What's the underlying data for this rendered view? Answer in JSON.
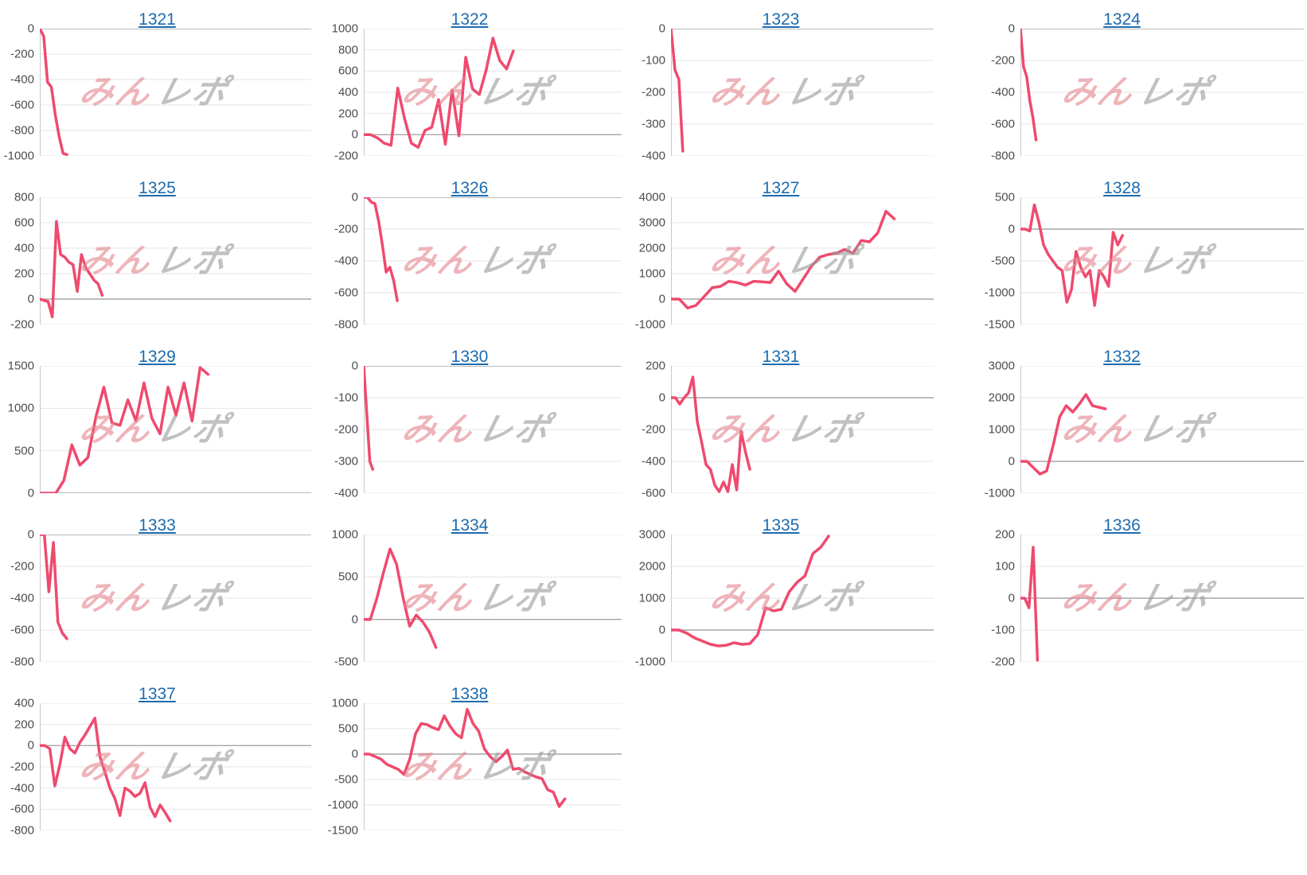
{
  "watermark": {
    "part1": "みん",
    "part2": "レポ"
  },
  "colors": {
    "line": "#ef4a6e",
    "link": "#1c6bb0",
    "grid": "#e4e4e4",
    "zero_line": "#a6a6a6",
    "axis": "#c9c9c9",
    "tick_label": "#4d4d4d",
    "watermark_pink": "#e4878f",
    "watermark_gray": "#9c9c9c",
    "background": "#ffffff"
  },
  "chart_data": [
    {
      "type": "line",
      "title": "1321",
      "yticks": [
        0,
        -200,
        -400,
        -600,
        -800,
        -1000
      ],
      "x_fraction": 0.1,
      "values": [
        0,
        -60,
        -420,
        -460,
        -680,
        -850,
        -980,
        -990
      ]
    },
    {
      "type": "line",
      "title": "1322",
      "yticks": [
        1000,
        800,
        600,
        400,
        200,
        0,
        -200
      ],
      "x_fraction": 0.58,
      "values": [
        0,
        0,
        -30,
        -80,
        -100,
        440,
        150,
        -80,
        -120,
        40,
        70,
        330,
        -90,
        420,
        -10,
        730,
        430,
        380,
        610,
        910,
        700,
        620,
        790
      ]
    },
    {
      "type": "line",
      "title": "1323",
      "yticks": [
        0,
        -100,
        -200,
        -300,
        -400
      ],
      "x_fraction": 0.045,
      "values": [
        0,
        -130,
        -160,
        -385
      ]
    },
    {
      "type": "line",
      "title": "1324",
      "yticks": [
        0,
        -200,
        -400,
        -600,
        -800
      ],
      "x_fraction": 0.055,
      "values": [
        0,
        -240,
        -300,
        -450,
        -560,
        -700
      ]
    },
    {
      "type": "line",
      "title": "1325",
      "yticks": [
        800,
        600,
        400,
        200,
        0,
        -200
      ],
      "x_fraction": 0.23,
      "values": [
        0,
        -10,
        -20,
        -140,
        610,
        350,
        330,
        290,
        270,
        60,
        350,
        250,
        200,
        150,
        120,
        30
      ]
    },
    {
      "type": "line",
      "title": "1326",
      "yticks": [
        0,
        -200,
        -400,
        -600,
        -800
      ],
      "x_fraction": 0.13,
      "values": [
        0,
        0,
        -30,
        -40,
        -150,
        -300,
        -470,
        -440,
        -520,
        -650
      ]
    },
    {
      "type": "line",
      "title": "1327",
      "yticks": [
        4000,
        3000,
        2000,
        1000,
        0,
        -1000
      ],
      "x_fraction": 0.85,
      "values": [
        0,
        0,
        -350,
        -250,
        100,
        450,
        500,
        700,
        650,
        550,
        700,
        680,
        650,
        1100,
        600,
        300,
        800,
        1300,
        1650,
        1750,
        1800,
        1950,
        1800,
        2300,
        2250,
        2600,
        3450,
        3150
      ]
    },
    {
      "type": "line",
      "title": "1328",
      "yticks": [
        500,
        0,
        -500,
        -1000,
        -1500
      ],
      "x_fraction": 0.36,
      "values": [
        0,
        0,
        -30,
        380,
        100,
        -250,
        -400,
        -500,
        -600,
        -650,
        -1150,
        -950,
        -350,
        -600,
        -750,
        -650,
        -1200,
        -650,
        -750,
        -900,
        -50,
        -250,
        -100
      ]
    },
    {
      "type": "line",
      "title": "1329",
      "yticks": [
        1500,
        1000,
        500,
        0
      ],
      "x_fraction": 0.62,
      "values": [
        0,
        0,
        0,
        150,
        570,
        330,
        420,
        900,
        1250,
        830,
        800,
        1100,
        850,
        1300,
        880,
        700,
        1250,
        920,
        1300,
        850,
        1480,
        1400
      ]
    },
    {
      "type": "line",
      "title": "1330",
      "yticks": [
        0,
        -100,
        -200,
        -300,
        -400
      ],
      "x_fraction": 0.035,
      "values": [
        0,
        -150,
        -300,
        -325
      ]
    },
    {
      "type": "line",
      "title": "1331",
      "yticks": [
        200,
        0,
        -200,
        -400,
        -600
      ],
      "x_fraction": 0.3,
      "values": [
        0,
        0,
        -40,
        0,
        30,
        130,
        -150,
        -280,
        -420,
        -450,
        -550,
        -590,
        -530,
        -590,
        -420,
        -580,
        -210,
        -340,
        -450
      ]
    },
    {
      "type": "line",
      "title": "1332",
      "yticks": [
        3000,
        2000,
        1000,
        0,
        -1000
      ],
      "x_fraction": 0.3,
      "values": [
        0,
        0,
        -200,
        -400,
        -300,
        500,
        1400,
        1750,
        1550,
        1800,
        2100,
        1750,
        1700,
        1650
      ]
    },
    {
      "type": "line",
      "title": "1333",
      "yticks": [
        0,
        -200,
        -400,
        -600,
        -800
      ],
      "x_fraction": 0.1,
      "values": [
        0,
        0,
        -360,
        -50,
        -550,
        -620,
        -655
      ]
    },
    {
      "type": "line",
      "title": "1334",
      "yticks": [
        1000,
        500,
        0,
        -500
      ],
      "x_fraction": 0.28,
      "values": [
        0,
        0,
        250,
        550,
        830,
        650,
        250,
        -80,
        50,
        -30,
        -150,
        -330
      ]
    },
    {
      "type": "line",
      "title": "1335",
      "yticks": [
        3000,
        2000,
        1000,
        0,
        -1000
      ],
      "x_fraction": 0.6,
      "values": [
        0,
        0,
        -100,
        -250,
        -350,
        -450,
        -500,
        -480,
        -400,
        -450,
        -430,
        -150,
        700,
        600,
        650,
        1200,
        1500,
        1700,
        2400,
        2600,
        2950
      ]
    },
    {
      "type": "line",
      "title": "1336",
      "yticks": [
        200,
        100,
        0,
        -100,
        -200
      ],
      "x_fraction": 0.06,
      "values": [
        0,
        0,
        -30,
        160,
        -195
      ]
    },
    {
      "type": "line",
      "title": "1337",
      "yticks": [
        400,
        200,
        0,
        -200,
        -400,
        -600,
        -800
      ],
      "x_fraction": 0.48,
      "values": [
        0,
        0,
        -30,
        -380,
        -180,
        80,
        -30,
        -70,
        30,
        100,
        180,
        260,
        -100,
        -250,
        -400,
        -500,
        -660,
        -400,
        -430,
        -480,
        -450,
        -350,
        -580,
        -670,
        -560,
        -630,
        -710
      ]
    },
    {
      "type": "line",
      "title": "1338",
      "yticks": [
        1000,
        500,
        0,
        -500,
        -1000,
        -1500
      ],
      "x_fraction": 0.78,
      "values": [
        0,
        0,
        -50,
        -100,
        -200,
        -250,
        -300,
        -400,
        -100,
        400,
        600,
        580,
        520,
        480,
        750,
        550,
        400,
        320,
        880,
        600,
        450,
        100,
        -50,
        -150,
        -50,
        80,
        -300,
        -280,
        -350,
        -400,
        -450,
        -480,
        -700,
        -750,
        -1030,
        -880
      ]
    }
  ]
}
